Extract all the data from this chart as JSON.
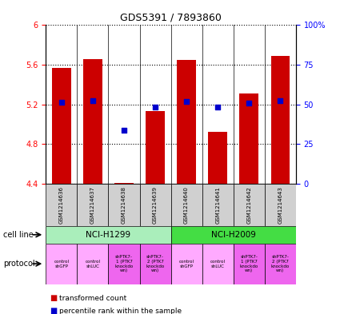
{
  "title": "GDS5391 / 7893860",
  "samples": [
    "GSM1214636",
    "GSM1214637",
    "GSM1214638",
    "GSM1214639",
    "GSM1214640",
    "GSM1214641",
    "GSM1214642",
    "GSM1214643"
  ],
  "bar_bottom": 4.4,
  "bar_tops": [
    5.57,
    5.66,
    4.41,
    5.13,
    5.65,
    4.92,
    5.31,
    5.69
  ],
  "percentile_values": [
    5.22,
    5.24,
    4.94,
    5.17,
    5.23,
    5.17,
    5.21,
    5.24
  ],
  "ylim_left": [
    4.4,
    6.0
  ],
  "ylim_right": [
    0,
    100
  ],
  "yticks_left": [
    4.4,
    4.8,
    5.2,
    5.6,
    6.0
  ],
  "ytick_labels_left": [
    "4.4",
    "4.8",
    "5.2",
    "5.6",
    "6"
  ],
  "yticks_right": [
    0,
    25,
    50,
    75,
    100
  ],
  "ytick_labels_right": [
    "0",
    "25",
    "50",
    "75",
    "100%"
  ],
  "bar_color": "#cc0000",
  "percentile_color": "#0000cc",
  "cell_line_groups": [
    {
      "label": "NCI-H1299",
      "start": 0,
      "end": 3,
      "color": "#aaeebb"
    },
    {
      "label": "NCI-H2009",
      "start": 4,
      "end": 7,
      "color": "#44dd44"
    }
  ],
  "protocols": [
    {
      "label": "control\nshGFP",
      "color": "#ffaaff"
    },
    {
      "label": "control\nshLUC",
      "color": "#ffaaff"
    },
    {
      "label": "shPTK7-\n1 (PTK7\nknockdo\nwn)",
      "color": "#ee66ee"
    },
    {
      "label": "shPTK7-\n2 (PTK7\nknockdo\nwn)",
      "color": "#ee66ee"
    },
    {
      "label": "control\nshGFP",
      "color": "#ffaaff"
    },
    {
      "label": "control\nshLUC",
      "color": "#ffaaff"
    },
    {
      "label": "shPTK7-\n1 (PTK7\nknockdo\nwn)",
      "color": "#ee66ee"
    },
    {
      "label": "shPTK7-\n2 (PTK7\nknockdo\nwn)",
      "color": "#ee66ee"
    }
  ],
  "legend_items": [
    {
      "label": "transformed count",
      "color": "#cc0000"
    },
    {
      "label": "percentile rank within the sample",
      "color": "#0000cc"
    }
  ],
  "sample_box_color": "#d0d0d0",
  "bg_color": "#ffffff"
}
